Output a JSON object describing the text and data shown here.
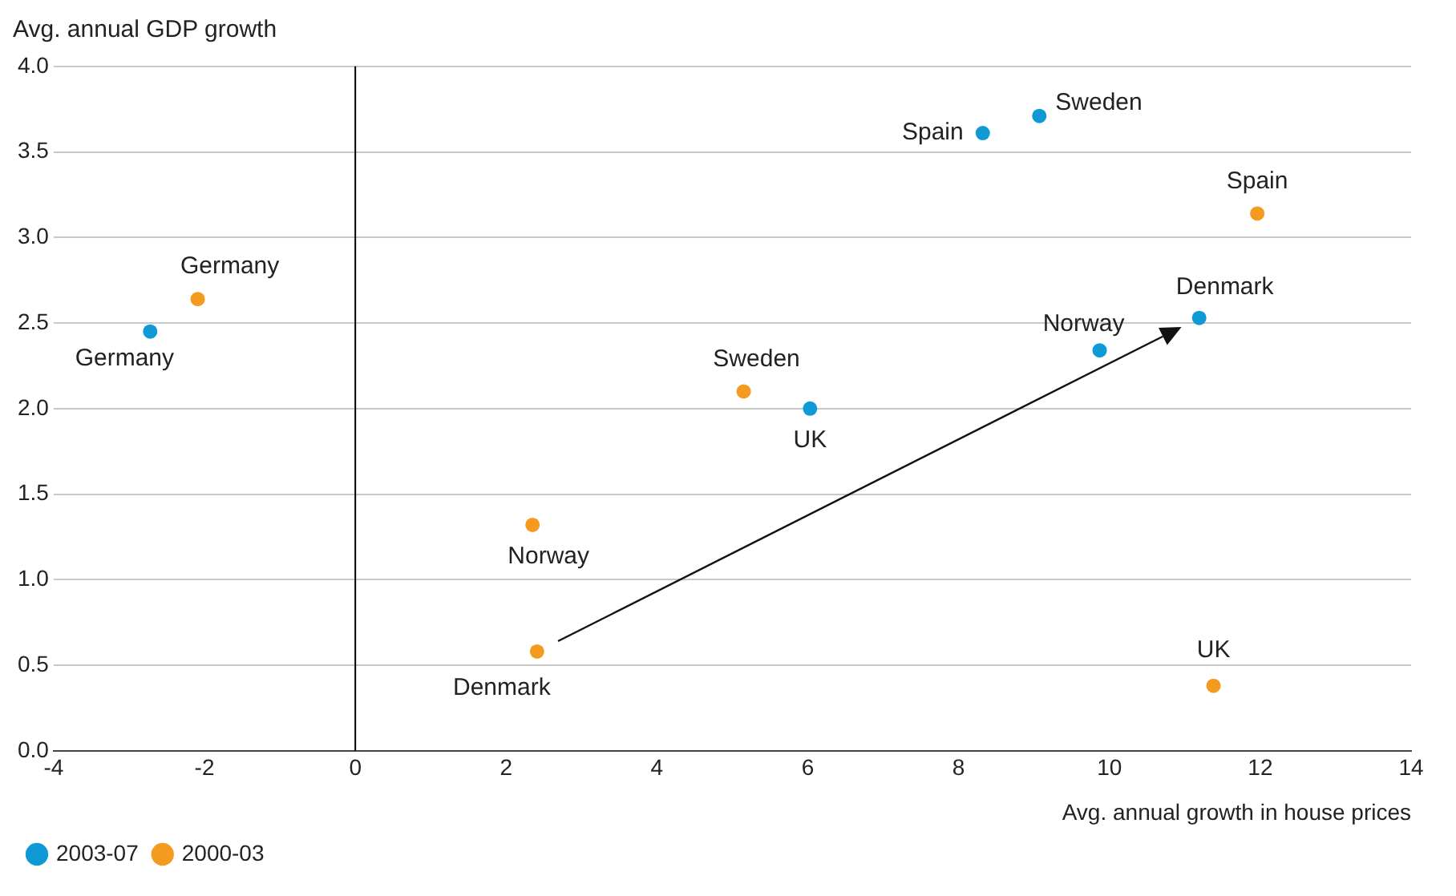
{
  "chart_data": {
    "type": "scatter",
    "ylabel": "Avg. annual GDP growth",
    "xlabel": "Avg. annual growth in house prices",
    "xlim": [
      -4,
      14
    ],
    "xticks": [
      -4,
      -2,
      0,
      2,
      4,
      6,
      8,
      10,
      12,
      14
    ],
    "ylim": [
      0,
      4
    ],
    "yticks": [
      {
        "value": 0,
        "label": "0.0"
      },
      {
        "value": 0.5,
        "label": "0.5"
      },
      {
        "value": 1,
        "label": "1.0"
      },
      {
        "value": 1.5,
        "label": "1.5"
      },
      {
        "value": 2,
        "label": "2.0"
      },
      {
        "value": 2.5,
        "label": "2.5"
      },
      {
        "value": 3,
        "label": "3.0"
      },
      {
        "value": 3.5,
        "label": "3.5"
      },
      {
        "value": 4,
        "label": "4.0"
      }
    ],
    "grid": "y",
    "legend": "bottom left",
    "marker": "circle",
    "ref_lines": [
      {
        "axis": "x",
        "value": 0,
        "color": "#000000"
      }
    ],
    "series": [
      {
        "name": "2003-07",
        "color": "#0f9ad6",
        "x": [
          -2.72,
          8.32,
          9.07,
          11.19,
          9.87,
          6.03
        ],
        "values": [
          2.45,
          3.61,
          3.71,
          2.53,
          2.34,
          2.0
        ]
      },
      {
        "name": "2000-03",
        "color": "#f39a1f",
        "x": [
          -2.09,
          5.15,
          11.96,
          2.35,
          2.41,
          11.38
        ],
        "values": [
          2.64,
          2.1,
          3.14,
          1.32,
          0.58,
          0.38
        ]
      }
    ],
    "annotations": [
      {
        "text": "Germany",
        "x": -2.72,
        "y": 2.45
      },
      {
        "text": "Spain",
        "x": 8.32,
        "y": 3.61
      },
      {
        "text": "Sweden",
        "x": 9.07,
        "y": 3.71
      },
      {
        "text": "Denmark",
        "x": 11.19,
        "y": 2.53
      },
      {
        "text": "Norway",
        "x": 9.87,
        "y": 2.34
      },
      {
        "text": "UK",
        "x": 6.03,
        "y": 2.0
      },
      {
        "text": "Germany",
        "x": -2.09,
        "y": 2.64
      },
      {
        "text": "Sweden",
        "x": 5.15,
        "y": 2.1
      },
      {
        "text": "Spain",
        "x": 11.96,
        "y": 3.14
      },
      {
        "text": "Norway",
        "x": 2.35,
        "y": 1.32
      },
      {
        "text": "Denmark",
        "x": 2.41,
        "y": 0.58
      },
      {
        "text": "UK",
        "x": 11.38,
        "y": 0.38
      }
    ]
  }
}
